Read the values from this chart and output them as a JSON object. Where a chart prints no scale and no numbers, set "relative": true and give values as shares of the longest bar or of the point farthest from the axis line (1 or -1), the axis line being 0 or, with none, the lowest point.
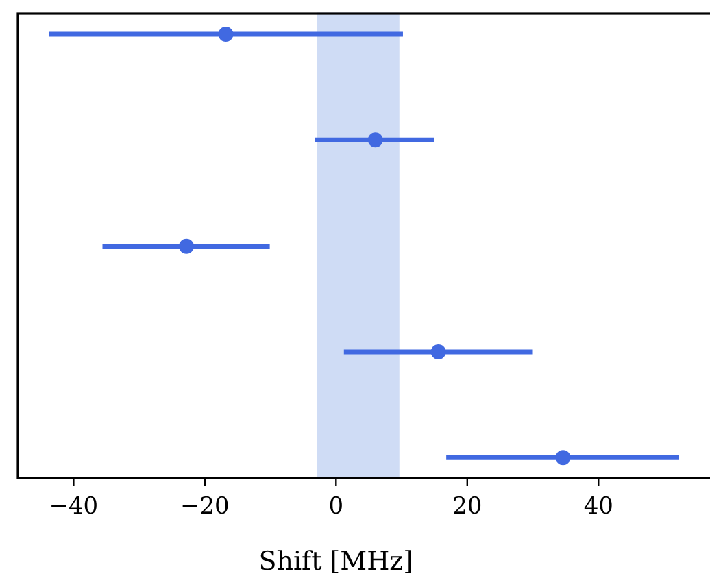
{
  "chart_data": {
    "type": "scatter",
    "xlabel": "Shift [MHz]",
    "relative": true,
    "series": [
      {
        "color": "#4169e1",
        "x": [
          -16.8,
          6.0,
          -22.8,
          15.6,
          34.6
        ],
        "values": [
          1,
          0.762,
          0.522,
          0.284,
          0.046
        ],
        "xerrors": [
          [
            -43.7,
            10.2
          ],
          [
            -3.2,
            15.0
          ],
          [
            -35.6,
            -10.1
          ],
          [
            1.2,
            30.0
          ],
          [
            16.8,
            52.3
          ]
        ]
      }
    ],
    "marker": "circle",
    "xlim": [
      -48.5,
      57
    ],
    "xticks": [
      -40,
      -20,
      0,
      20,
      40
    ],
    "bands": [
      {
        "axis": "x",
        "from": -2.8,
        "to": 9.5,
        "color": "#cfdcf5"
      }
    ],
    "grid": false
  }
}
